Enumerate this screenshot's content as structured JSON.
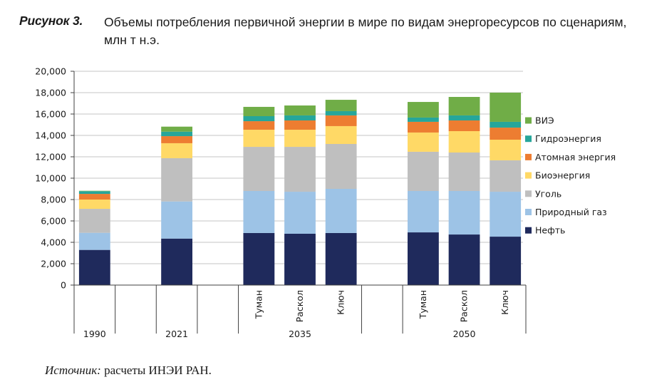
{
  "figure": {
    "label": "Рисунок 3.",
    "title": "Объемы потребления первичной энергии в мире по видам энергоресурсов по сценариям, млн т н.э.",
    "source_prefix": "Источник:",
    "source_text": " расчеты ИНЭИ РАН."
  },
  "chart_data": {
    "type": "bar",
    "stacked": true,
    "title": "Объемы потребления первичной энергии в мире по видам энергоресурсов по сценариям, млн т н.э.",
    "xlabel": "",
    "ylabel": "",
    "ylim": [
      0,
      20000
    ],
    "yticks": [
      0,
      2000,
      4000,
      6000,
      8000,
      10000,
      12000,
      14000,
      16000,
      18000,
      20000
    ],
    "ytick_labels": [
      "0",
      "2,000",
      "4,000",
      "6,000",
      "8,000",
      "10,000",
      "12,000",
      "14,000",
      "16,000",
      "18,000",
      "20,000"
    ],
    "grid": true,
    "legend_position": "right",
    "slots": [
      "1990",
      "",
      "2021",
      "",
      "Туман",
      "Раскол",
      "Ключ",
      "",
      "Туман",
      "Раскол",
      "Ключ"
    ],
    "groups": [
      {
        "label": "1990",
        "categories": [
          ""
        ]
      },
      {
        "label": "2021",
        "categories": [
          ""
        ]
      },
      {
        "label": "2035",
        "categories": [
          "Туман",
          "Раскол",
          "Ключ"
        ]
      },
      {
        "label": "2050",
        "categories": [
          "Туман",
          "Раскол",
          "Ключ"
        ]
      }
    ],
    "categories": [
      "1990",
      "2021",
      "2035 Туман",
      "2035 Раскол",
      "2035 Ключ",
      "2050 Туман",
      "2050 Раскол",
      "2050 Ключ"
    ],
    "series": [
      {
        "name": "Нефть",
        "color": "#1f2a5c",
        "values": [
          3290,
          4350,
          4870,
          4800,
          4870,
          4930,
          4730,
          4530
        ]
      },
      {
        "name": "Природный газ",
        "color": "#9dc3e6",
        "values": [
          1600,
          3470,
          3930,
          3930,
          4130,
          3870,
          4070,
          4200
        ]
      },
      {
        "name": "Уголь",
        "color": "#bfbfbf",
        "values": [
          2240,
          4050,
          4130,
          4200,
          4200,
          3670,
          3600,
          2940
        ]
      },
      {
        "name": "Биоэнергия",
        "color": "#ffd966",
        "values": [
          870,
          1400,
          1600,
          1600,
          1670,
          1800,
          2000,
          1930
        ]
      },
      {
        "name": "Атомная энергия",
        "color": "#ed7d31",
        "values": [
          530,
          660,
          800,
          870,
          1000,
          1000,
          1000,
          1130
        ]
      },
      {
        "name": "Гидроэнергия",
        "color": "#26a69a",
        "values": [
          250,
          420,
          470,
          470,
          400,
          400,
          470,
          540
        ]
      },
      {
        "name": "ВИЭ",
        "color": "#70ad47",
        "values": [
          40,
          470,
          870,
          930,
          1060,
          1460,
          1730,
          2730
        ]
      }
    ],
    "legend_order": [
      "ВИЭ",
      "Гидроэнергия",
      "Атомная энергия",
      "Биоэнергия",
      "Уголь",
      "Природный газ",
      "Нефть"
    ]
  }
}
